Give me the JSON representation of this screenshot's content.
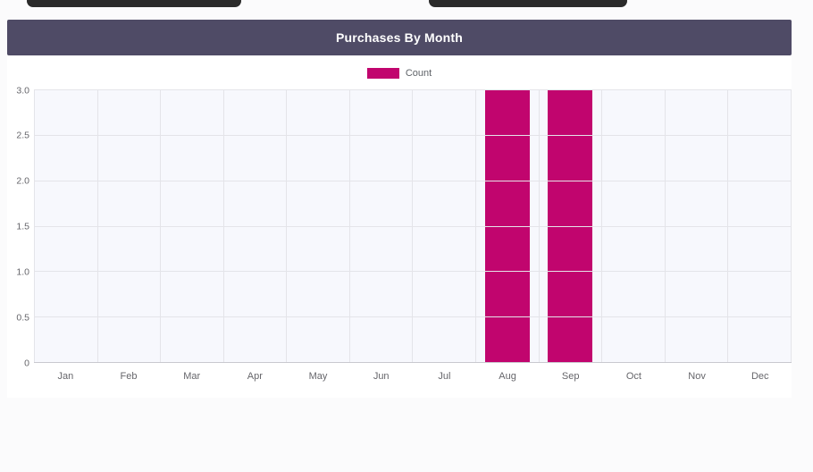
{
  "header": {
    "title": "Purchases By Month",
    "background": "#4f4b66"
  },
  "chart_data": {
    "type": "bar",
    "title": "Purchases By Month",
    "legend": [
      {
        "label": "Count",
        "color": "#c1056e"
      }
    ],
    "legend_position": "top-center",
    "categories": [
      "Jan",
      "Feb",
      "Mar",
      "Apr",
      "May",
      "Jun",
      "Jul",
      "Aug",
      "Sep",
      "Oct",
      "Nov",
      "Dec"
    ],
    "values": [
      0,
      0,
      0,
      0,
      0,
      0,
      0,
      3,
      3,
      0,
      0,
      0
    ],
    "xlabel": "",
    "ylabel": "",
    "ylim": [
      0,
      3
    ],
    "yticks": [
      0,
      0.5,
      1.0,
      1.5,
      2.0,
      2.5,
      3.0
    ],
    "ytick_labels": [
      "0",
      "0.5",
      "1.0",
      "1.5",
      "2.0",
      "2.5",
      "3.0"
    ],
    "grid": true,
    "bar_color": "#c1056e",
    "plot_background": "#f7f8fd"
  }
}
